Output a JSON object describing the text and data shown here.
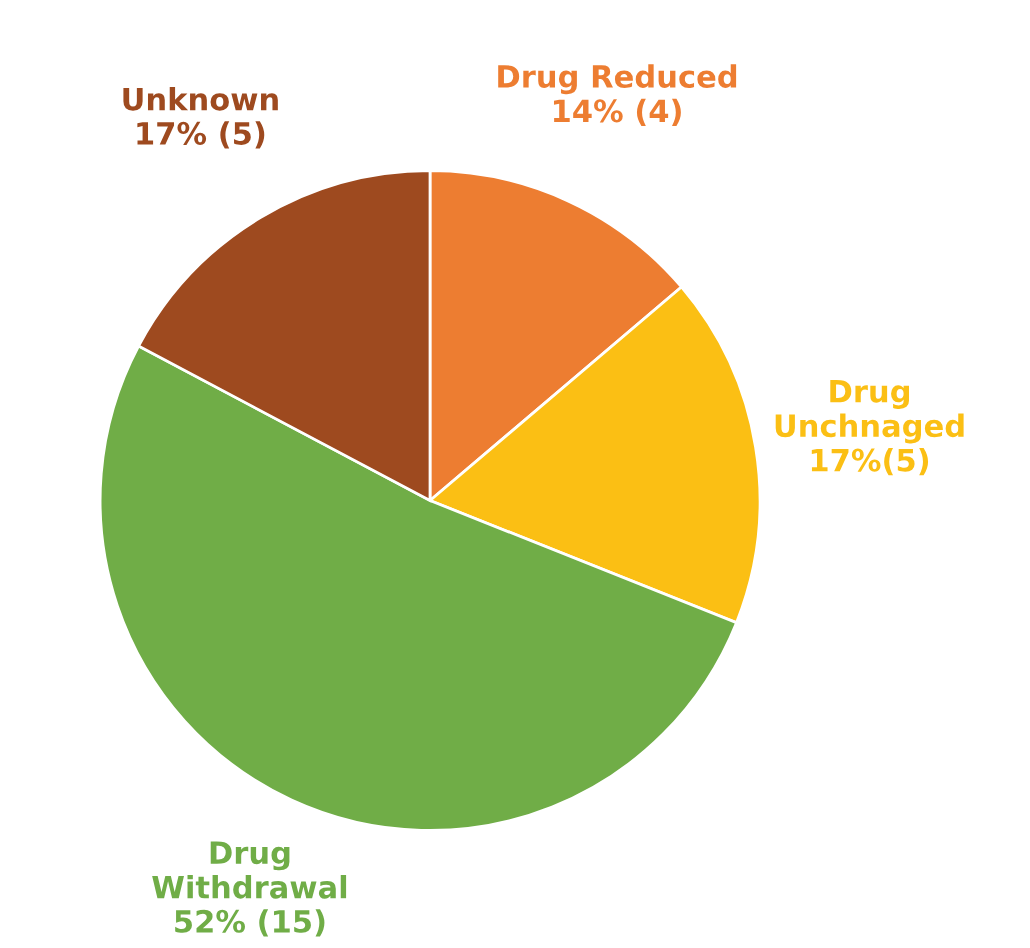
{
  "chart_data": {
    "type": "pie",
    "categories": [
      "Drug Reduced",
      "Drug\nUnchnaged",
      "Drug\nWithdrawal",
      "Unknown"
    ],
    "values": [
      4,
      5,
      15,
      5
    ],
    "value_labels": [
      "14% (4)",
      "17%(5)",
      "52% (15)",
      "17% (5)"
    ],
    "colors": [
      "#ed7d31",
      "#fbbf14",
      "#70ad47",
      "#9e4a1f"
    ]
  }
}
